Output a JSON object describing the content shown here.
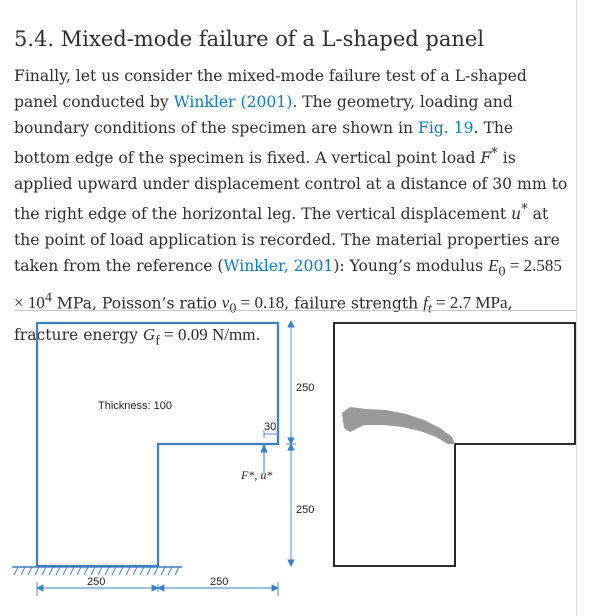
{
  "section": {
    "number": "5.4.",
    "title": "Mixed-mode failure of a L-shaped panel"
  },
  "paragraph": {
    "s1": "Finally, let us consider the mixed-mode failure test of a L-shaped panel conducted by ",
    "cite_winkler": "Winkler (2001)",
    "s2": ". The geometry, loading and boundary conditions of the specimen are shown in ",
    "fig_ref": "Fig. 19",
    "s3": ". The bottom edge of the specimen is fixed. A vertical point load ",
    "F_sym": "F",
    "s4": " is applied upward under displacement control at a distance of 30 mm to the right edge of the horizontal leg. The vertical displacement ",
    "u_sym": "u",
    "s5": " at the point of load application is recorded. The material properties are taken from the reference (",
    "cite_winkler2": "Winkler, 2001",
    "s6": "): Young’s modulus ",
    "E0_value": "2.585 × 10",
    "E0_exp": "4",
    "s7": " MPa, Poisson’s ratio ",
    "nu0_value": "0.18",
    "s8": ", failure strength ",
    "ft_value": "2.7 MPa",
    "s9": ", fracture energy ",
    "Gf_value": "0.09 N/mm",
    "s10": "."
  },
  "figure": {
    "thickness_label": "Thickness: 100",
    "dim_30": "30",
    "load_label": "F*, u*",
    "dim_right_upper": "250",
    "dim_right_lower": "250",
    "dim_bottom_left": "250",
    "dim_bottom_right": "250",
    "line_color": "#3f7fbf",
    "crack_color": "#999999"
  }
}
